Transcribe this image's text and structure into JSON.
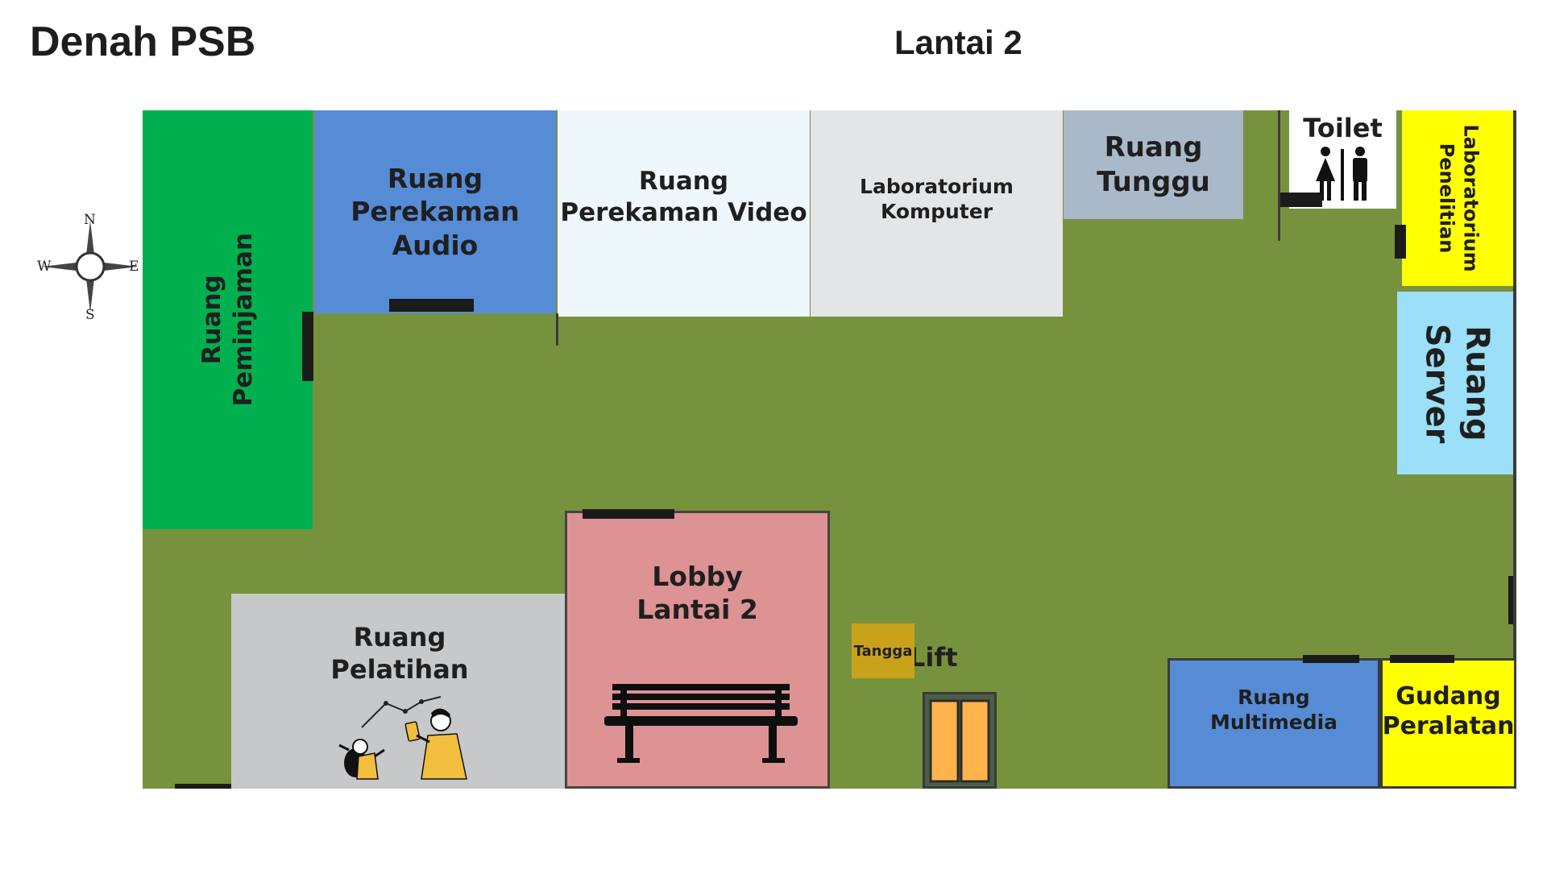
{
  "header": {
    "title": "Denah PSB",
    "floor": "Lantai 2"
  },
  "compass": {
    "north": "N",
    "south": "S",
    "west": "W",
    "east": "E"
  },
  "rooms": {
    "peminjaman": "Ruang\nPeminjaman",
    "perekaman_audio": "Ruang\nPerekaman\nAudio",
    "perekaman_video": "Ruang\nPerekaman Video",
    "lab_komputer": "Laboratorium\nKomputer",
    "ruang_tunggu": "Ruang\nTunggu",
    "toilet": "Toilet",
    "lab_penelitian": "Laboratorium\nPenelitian",
    "server": "Ruang\nServer",
    "pelatihan": "Ruang\nPelatihan",
    "lobby": "Lobby\nLantai 2",
    "lift": "Lift",
    "tangga": "Tangga",
    "multimedia": "Ruang\nMultimedia",
    "gudang": "Gudang\nPeralatan"
  },
  "colors": {
    "floor": "#77923d",
    "peminjaman": "#00b04f",
    "perekaman_audio": "#568bd5",
    "perekaman_video": "#eef7fb",
    "lab_komputer": "#e4e5e7",
    "ruang_tunggu": "#a9b9c9",
    "toilet": "#ffffff",
    "lab_penelitian": "#ffff01",
    "server": "#9bdff8",
    "pelatihan": "#c7c8ca",
    "lobby": "#dd9294",
    "lift": "#ffb44b",
    "tangga": "#c8a21a",
    "multimedia": "#568bd5",
    "gudang": "#ffff01"
  },
  "icons": [
    "compass-rose-icon",
    "toilet-icon",
    "training-people-icon",
    "bench-icon",
    "lift-door-icon"
  ]
}
